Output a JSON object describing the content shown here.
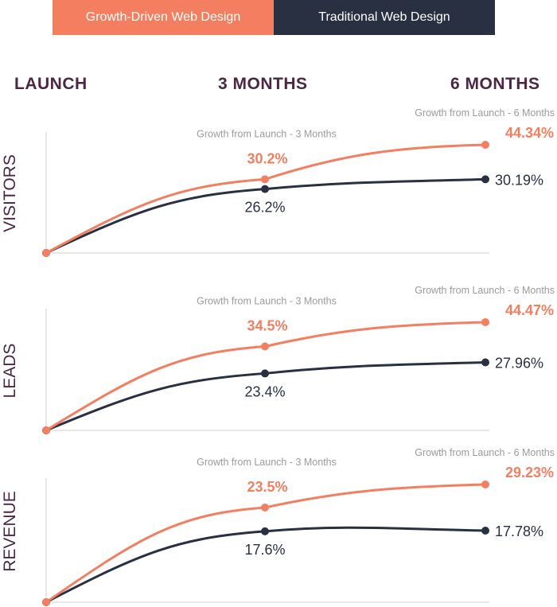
{
  "legend": {
    "growth_driven": "Growth-Driven Web Design",
    "traditional": "Traditional Web Design"
  },
  "periods": {
    "launch": "LAUNCH",
    "three_months": "3 MONTHS",
    "six_months": "6 MONTHS"
  },
  "colors": {
    "growth_driven": "#f47e60",
    "traditional": "#283041",
    "axis": "#cfcfcf",
    "caption": "#9b9b9b",
    "row_label": "#4a2743"
  },
  "chart_data": [
    {
      "type": "line",
      "title": "VISITORS",
      "x": [
        "LAUNCH",
        "3 MONTHS",
        "6 MONTHS"
      ],
      "series": [
        {
          "name": "Growth-Driven Web Design",
          "values": [
            0,
            30.2,
            44.34
          ],
          "labels": [
            "",
            "30.2%",
            "44.34%"
          ]
        },
        {
          "name": "Traditional Web Design",
          "values": [
            0,
            26.2,
            30.19
          ],
          "labels": [
            "",
            "26.2%",
            "30.19%"
          ]
        }
      ],
      "annotations": [
        "Growth from Launch - 3 Months",
        "Growth from Launch - 6 Months"
      ]
    },
    {
      "type": "line",
      "title": "LEADS",
      "x": [
        "LAUNCH",
        "3 MONTHS",
        "6 MONTHS"
      ],
      "series": [
        {
          "name": "Growth-Driven Web Design",
          "values": [
            0,
            34.5,
            44.47
          ],
          "labels": [
            "",
            "34.5%",
            "44.47%"
          ]
        },
        {
          "name": "Traditional Web Design",
          "values": [
            0,
            23.4,
            27.96
          ],
          "labels": [
            "",
            "23.4%",
            "27.96%"
          ]
        }
      ],
      "annotations": [
        "Growth from Launch - 3 Months",
        "Growth from Launch - 6 Months"
      ]
    },
    {
      "type": "line",
      "title": "REVENUE",
      "x": [
        "LAUNCH",
        "3 MONTHS",
        "6 MONTHS"
      ],
      "series": [
        {
          "name": "Growth-Driven Web Design",
          "values": [
            0,
            23.5,
            29.23
          ],
          "labels": [
            "",
            "23.5%",
            "29.23%"
          ]
        },
        {
          "name": "Traditional Web Design",
          "values": [
            0,
            17.6,
            17.78
          ],
          "labels": [
            "",
            "17.6%",
            "17.78%"
          ]
        }
      ],
      "annotations": [
        "Growth from Launch - 3 Months",
        "Growth from Launch - 6 Months"
      ]
    }
  ]
}
